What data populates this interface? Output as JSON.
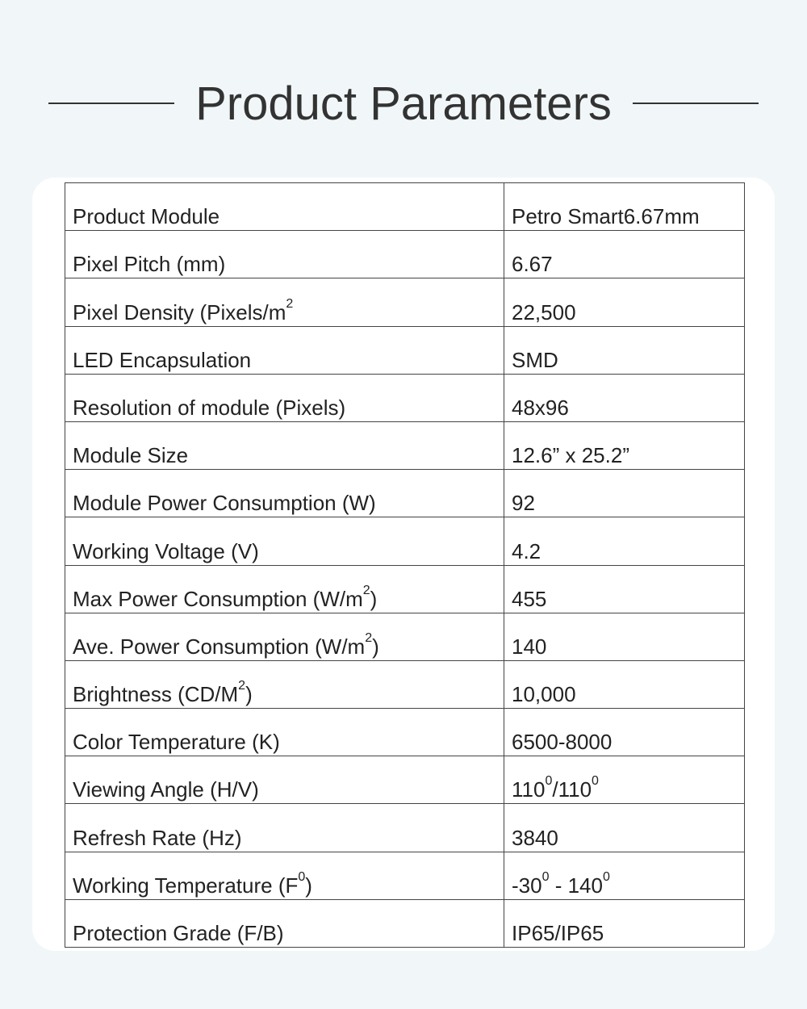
{
  "title": "Product Parameters",
  "rows": [
    {
      "label": [
        {
          "t": "Product Module"
        }
      ],
      "value": [
        {
          "t": "Petro Smart6.67mm"
        }
      ]
    },
    {
      "label": [
        {
          "t": "Pixel Pitch (mm)"
        }
      ],
      "value": [
        {
          "t": "6.67"
        }
      ]
    },
    {
      "label": [
        {
          "t": "Pixel Density (Pixels/m"
        },
        {
          "t": "2",
          "sup": true
        }
      ],
      "value": [
        {
          "t": "22,500"
        }
      ]
    },
    {
      "label": [
        {
          "t": "LED Encapsulation"
        }
      ],
      "value": [
        {
          "t": "SMD"
        }
      ]
    },
    {
      "label": [
        {
          "t": "Resolution of module (Pixels)"
        }
      ],
      "value": [
        {
          "t": "48x96"
        }
      ]
    },
    {
      "label": [
        {
          "t": "Module Size"
        }
      ],
      "value": [
        {
          "t": "12.6” x 25.2”"
        }
      ]
    },
    {
      "label": [
        {
          "t": "Module Power Consumption (W)"
        }
      ],
      "value": [
        {
          "t": "92"
        }
      ]
    },
    {
      "label": [
        {
          "t": "Working Voltage (V)"
        }
      ],
      "value": [
        {
          "t": "4.2"
        }
      ]
    },
    {
      "label": [
        {
          "t": "Max Power Consumption (W/m"
        },
        {
          "t": "2",
          "sup": true
        },
        {
          "t": ")"
        }
      ],
      "value": [
        {
          "t": "455"
        }
      ]
    },
    {
      "label": [
        {
          "t": "Ave. Power Consumption (W/m"
        },
        {
          "t": "2",
          "sup": true
        },
        {
          "t": ")"
        }
      ],
      "value": [
        {
          "t": "140"
        }
      ]
    },
    {
      "label": [
        {
          "t": "Brightness (CD/M"
        },
        {
          "t": "2",
          "sup": true
        },
        {
          "t": ")"
        }
      ],
      "value": [
        {
          "t": "10,000"
        }
      ]
    },
    {
      "label": [
        {
          "t": "Color Temperature (K)"
        }
      ],
      "value": [
        {
          "t": "6500-8000"
        }
      ]
    },
    {
      "label": [
        {
          "t": "Viewing Angle (H/V)"
        }
      ],
      "value": [
        {
          "t": "110"
        },
        {
          "t": "0",
          "sup": true
        },
        {
          "t": "/110"
        },
        {
          "t": "0",
          "sup": true
        }
      ]
    },
    {
      "label": [
        {
          "t": "Refresh Rate (Hz)"
        }
      ],
      "value": [
        {
          "t": "3840"
        }
      ]
    },
    {
      "label": [
        {
          "t": "Working Temperature (F"
        },
        {
          "t": "0",
          "sup": true
        },
        {
          "t": ")"
        }
      ],
      "value": [
        {
          "t": "-30"
        },
        {
          "t": "0",
          "sup": true
        },
        {
          "t": " - 140"
        },
        {
          "t": "0",
          "sup": true
        }
      ]
    },
    {
      "label": [
        {
          "t": "Protection Grade (F/B)"
        }
      ],
      "value": [
        {
          "t": "IP65/IP65"
        }
      ]
    }
  ]
}
